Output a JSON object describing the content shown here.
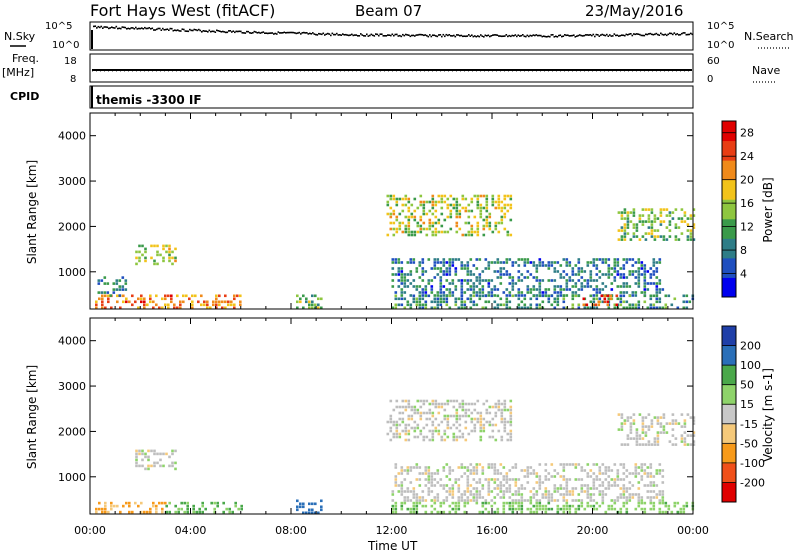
{
  "header": {
    "station": "Fort Hays West (fitACF)",
    "beam": "Beam 07",
    "date": "23/May/2016"
  },
  "strip": {
    "nsky_label": "N.Sky",
    "nsearch_label": "N.Search",
    "noise_ticks": [
      "10^5",
      "10^0"
    ],
    "freq_label": "Freq.",
    "freq_unit": "[MHz]",
    "freq_ticks": [
      "18",
      "8"
    ],
    "nave_label": "Nave",
    "nave_ticks": [
      "60",
      "0"
    ],
    "cpid_label": "CPID",
    "cpid_value": "themis -3300 IF"
  },
  "colors": {
    "power_scale": [
      "#0000ee",
      "#1f4fbf",
      "#2e7d87",
      "#3a9a4a",
      "#8ec63f",
      "#f2c31a",
      "#f08a1a",
      "#e83d14",
      "#e00000"
    ],
    "velocity_scale": [
      "#e00000",
      "#f0501a",
      "#f79a1a",
      "#f5c97a",
      "#c8c8c8",
      "#8ed36a",
      "#4aa84a",
      "#2a6fb8",
      "#1f3fa8"
    ],
    "ground_scatter": "#bebebe"
  },
  "chart_data": [
    {
      "type": "heatmap",
      "title": "",
      "xlabel": "",
      "ylabel": "Slant Range [km]",
      "xlim": [
        0,
        24
      ],
      "ylim": [
        180,
        4500
      ],
      "yticks": [
        "1000",
        "2000",
        "3000",
        "4000"
      ],
      "colorbar": {
        "label": "Power [dB]",
        "range": [
          0,
          30
        ],
        "ticks": [
          "4",
          "8",
          "12",
          "16",
          "20",
          "24",
          "28"
        ]
      },
      "regions": [
        {
          "t0": 0.2,
          "t1": 6.0,
          "r0": 200,
          "r1": 500,
          "power": 22
        },
        {
          "t0": 0.3,
          "t1": 1.4,
          "r0": 500,
          "r1": 900,
          "power": 8
        },
        {
          "t0": 1.8,
          "t1": 3.4,
          "r0": 1150,
          "r1": 1600,
          "power": 16
        },
        {
          "t0": 8.2,
          "t1": 9.2,
          "r0": 200,
          "r1": 500,
          "power": 14
        },
        {
          "t0": 11.8,
          "t1": 16.8,
          "r0": 1800,
          "r1": 2700,
          "power": 16
        },
        {
          "t0": 12.0,
          "t1": 22.8,
          "r0": 500,
          "r1": 1300,
          "power": 8
        },
        {
          "t0": 12.0,
          "t1": 24.0,
          "r0": 200,
          "r1": 500,
          "power": 10
        },
        {
          "t0": 19.6,
          "t1": 21.0,
          "r0": 250,
          "r1": 500,
          "power": 26
        },
        {
          "t0": 21.0,
          "t1": 24.0,
          "r0": 1700,
          "r1": 2400,
          "power": 14
        }
      ]
    },
    {
      "type": "heatmap",
      "title": "",
      "xlabel": "Time UT",
      "ylabel": "Slant Range [km]",
      "xlim": [
        0,
        24
      ],
      "ylim": [
        180,
        4500
      ],
      "xticks": [
        "00:00",
        "04:00",
        "08:00",
        "12:00",
        "16:00",
        "20:00",
        "00:00"
      ],
      "yticks": [
        "1000",
        "2000",
        "3000",
        "4000"
      ],
      "colorbar": {
        "label": "Velocity [m s-1]",
        "ticks": [
          "200",
          "100",
          "50",
          "15",
          "-15",
          "-50",
          "-100",
          "-200"
        ]
      },
      "regions": [
        {
          "t0": 0.2,
          "t1": 3.0,
          "r0": 200,
          "r1": 450,
          "velocity": -60
        },
        {
          "t0": 3.0,
          "t1": 6.0,
          "r0": 200,
          "r1": 450,
          "velocity": 60
        },
        {
          "t0": 1.8,
          "t1": 3.4,
          "r0": 1150,
          "r1": 1600,
          "velocity": 0
        },
        {
          "t0": 8.2,
          "t1": 9.2,
          "r0": 200,
          "r1": 500,
          "velocity": 120
        },
        {
          "t0": 11.8,
          "t1": 16.8,
          "r0": 1800,
          "r1": 2700,
          "velocity": 0
        },
        {
          "t0": 12.0,
          "t1": 22.8,
          "r0": 500,
          "r1": 1300,
          "velocity": 0
        },
        {
          "t0": 12.0,
          "t1": 24.0,
          "r0": 200,
          "r1": 450,
          "velocity": 40
        },
        {
          "t0": 21.0,
          "t1": 24.0,
          "r0": 1700,
          "r1": 2400,
          "velocity": 0
        }
      ]
    }
  ]
}
